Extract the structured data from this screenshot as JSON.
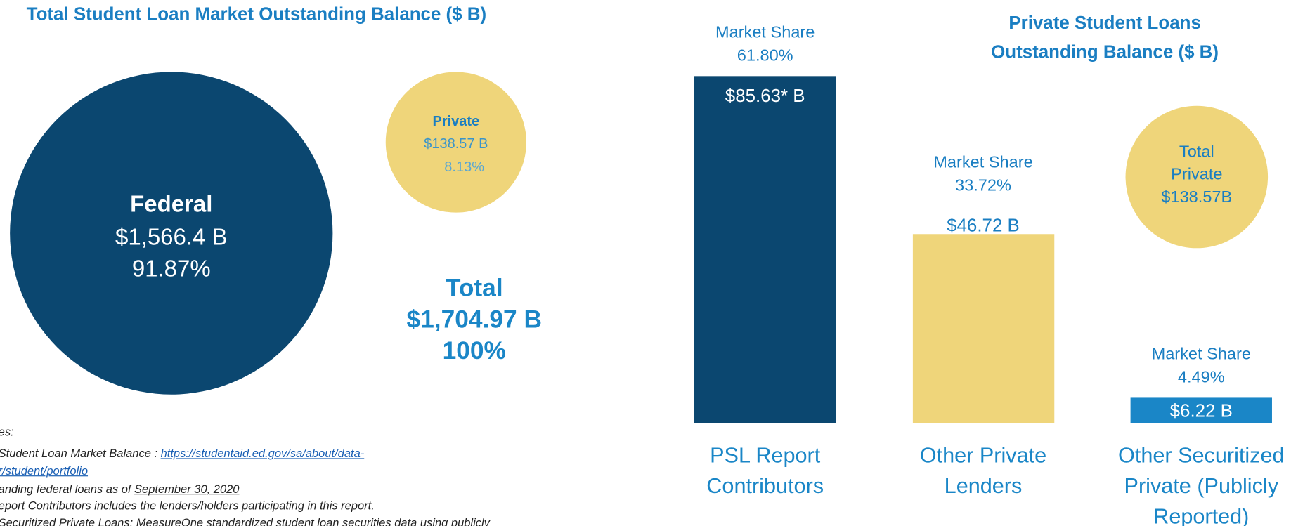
{
  "chart_data": [
    {
      "type": "bubble",
      "title": "Total Student Loan Market Outstanding Balance ($ B)",
      "categories": [
        "Federal",
        "Private"
      ],
      "values": [
        1566.4,
        138.57
      ],
      "value_labels": [
        "$1,566.4 B",
        "$138.57 B"
      ],
      "shares": [
        91.87,
        8.13
      ],
      "share_labels": [
        "91.87%",
        "8.13%"
      ],
      "colors": [
        "#0b4770",
        "#efd57a"
      ],
      "total": {
        "label": "Total",
        "value": 1704.97,
        "value_label": "$1,704.97 B",
        "share": 100,
        "share_label": "100%"
      }
    },
    {
      "type": "bar",
      "title": "Private Student Loans Outstanding Balance ($ B)",
      "categories": [
        "PSL Report Contributors",
        "Other Private Lenders",
        "Other Securitized Private (Publicly Reported)"
      ],
      "values": [
        85.63,
        46.72,
        6.22
      ],
      "value_labels": [
        "$85.63* B",
        "$46.72 B",
        "$6.22 B"
      ],
      "colors": [
        "#0b4770",
        "#efd57a",
        "#1a86c7"
      ],
      "label_colors": [
        "#ffffff",
        "#1a7ec2",
        "#ffffff"
      ],
      "share_title": "Market Share",
      "shares": [
        61.8,
        33.72,
        4.49
      ],
      "share_labels": [
        "61.80%",
        "33.72%",
        "4.49%"
      ],
      "total": {
        "label": "Total Private",
        "value": 138.57,
        "value_label": "$138.57B",
        "color": "#efd57a"
      }
    }
  ],
  "notes": {
    "heading": "es:",
    "lines": [
      [
        {
          "text": "Student Loan Market Balance : "
        },
        {
          "text": "https://studentaid.ed.gov/sa/about/data-",
          "link": true
        }
      ],
      [
        {
          "text": "r/student/portfolio",
          "link": true
        }
      ],
      [
        {
          "text": "anding federal loans as of "
        },
        {
          "text": "September 30, 2020",
          "underline": true
        }
      ],
      [
        {
          "text": "eport Contributors includes the lenders/holders participating in this report."
        }
      ],
      [
        {
          "text": "Securitized Private Loans: MeasureOne standardized student loan securities data using publicly"
        }
      ]
    ]
  }
}
